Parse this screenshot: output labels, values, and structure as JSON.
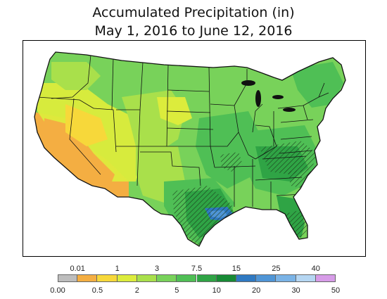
{
  "title_line1": "Accumulated Precipitation (in)",
  "title_line2": "May 1, 2016 to June 12, 2016",
  "colors": {
    "state_border": "#111111",
    "hatch": "#1a3a1a",
    "background": "#ffffff"
  },
  "legend": {
    "bins": [
      {
        "from": "0.00",
        "to": "0.01",
        "color": "#bdbdbd"
      },
      {
        "from": "0.01",
        "to": "0.5",
        "color": "#f4ae42"
      },
      {
        "from": "0.5",
        "to": "1",
        "color": "#f7d83a"
      },
      {
        "from": "1",
        "to": "2",
        "color": "#dcec3c"
      },
      {
        "from": "2",
        "to": "3",
        "color": "#a9e04b"
      },
      {
        "from": "3",
        "to": "5",
        "color": "#78d25a"
      },
      {
        "from": "5",
        "to": "7.5",
        "color": "#4fbf55"
      },
      {
        "from": "7.5",
        "to": "10",
        "color": "#2fa445"
      },
      {
        "from": "10",
        "to": "15",
        "color": "#178a35"
      },
      {
        "from": "15",
        "to": "20",
        "color": "#2f79c2"
      },
      {
        "from": "20",
        "to": "25",
        "color": "#4f95d6"
      },
      {
        "from": "25",
        "to": "30",
        "color": "#7ab3e6"
      },
      {
        "from": "30",
        "to": "40",
        "color": "#b5d6f2"
      },
      {
        "from": "40",
        "to": "50",
        "color": "#d79ce8"
      }
    ],
    "top_labels": [
      "0.01",
      "1",
      "3",
      "7.5",
      "15",
      "25",
      "40"
    ],
    "bottom_labels": [
      "0.00",
      "0.5",
      "2",
      "5",
      "10",
      "20",
      "30",
      "50"
    ]
  }
}
